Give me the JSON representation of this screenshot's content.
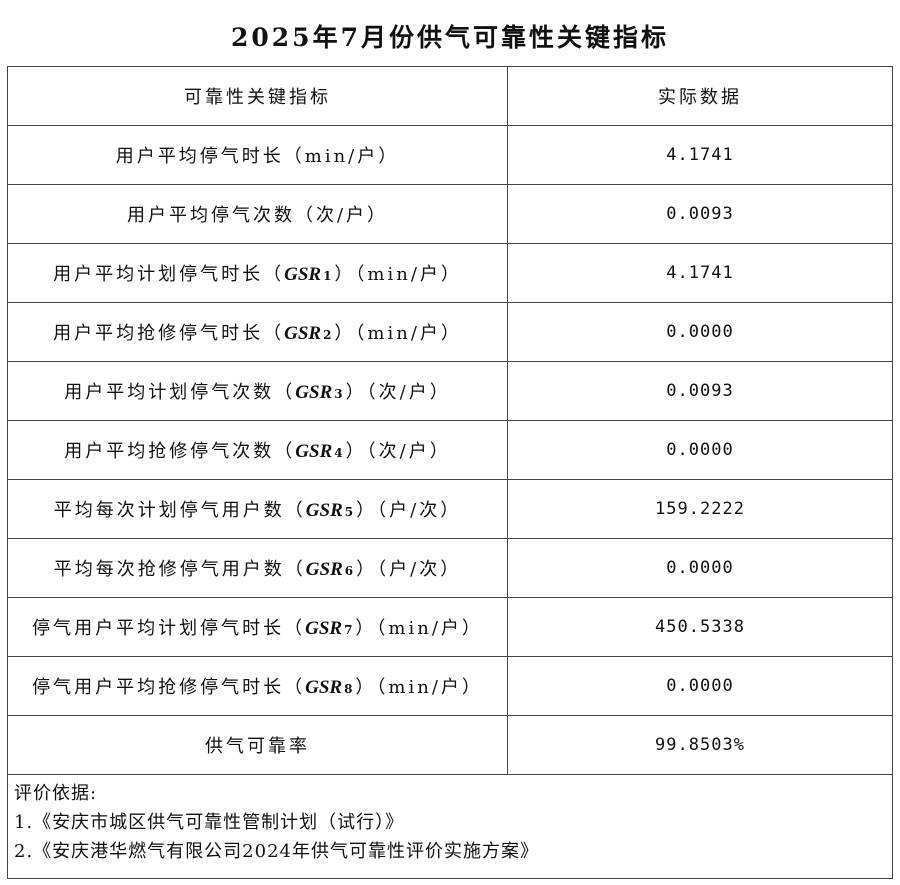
{
  "title": "2025年7月份供气可靠性关键指标",
  "header": {
    "indicator": "可靠性关键指标",
    "value": "实际数据"
  },
  "rows": [
    {
      "prefix": "用户平均停气时长（min/户）",
      "code": "",
      "sub": "",
      "suffix": "",
      "value": "4.1741"
    },
    {
      "prefix": "用户平均停气次数（次/户）",
      "code": "",
      "sub": "",
      "suffix": "",
      "value": "0.0093"
    },
    {
      "prefix": "用户平均计划停气时长（",
      "code": "GSR",
      "sub": "1",
      "suffix": "）（min/户）",
      "value": "4.1741"
    },
    {
      "prefix": "用户平均抢修停气时长（",
      "code": "GSR",
      "sub": "2",
      "suffix": "）（min/户）",
      "value": "0.0000"
    },
    {
      "prefix": "用户平均计划停气次数（",
      "code": "GSR",
      "sub": "3",
      "suffix": "）（次/户）",
      "value": "0.0093"
    },
    {
      "prefix": "用户平均抢修停气次数（",
      "code": "GSR",
      "sub": "4",
      "suffix": "）（次/户）",
      "value": "0.0000"
    },
    {
      "prefix": "平均每次计划停气用户数（",
      "code": "GSR",
      "sub": "5",
      "suffix": "）（户/次）",
      "value": "159.2222"
    },
    {
      "prefix": "平均每次抢修停气用户数（",
      "code": "GSR",
      "sub": "6",
      "suffix": "）（户/次）",
      "value": "0.0000"
    },
    {
      "prefix": "停气用户平均计划停气时长（",
      "code": "GSR",
      "sub": "7",
      "suffix": "）（min/户）",
      "value": "450.5338"
    },
    {
      "prefix": "停气用户平均抢修停气时长（",
      "code": "GSR",
      "sub": "8",
      "suffix": "）（min/户）",
      "value": "0.0000"
    },
    {
      "prefix": "供气可靠率",
      "code": "",
      "sub": "",
      "suffix": "",
      "value": "99.8503%"
    }
  ],
  "footer": {
    "heading": "评价依据:",
    "items": [
      "1.《安庆市城区供气可靠性管制计划（试行）》",
      "2.《安庆港华燃气有限公司2024年供气可靠性评价实施方案》"
    ]
  }
}
